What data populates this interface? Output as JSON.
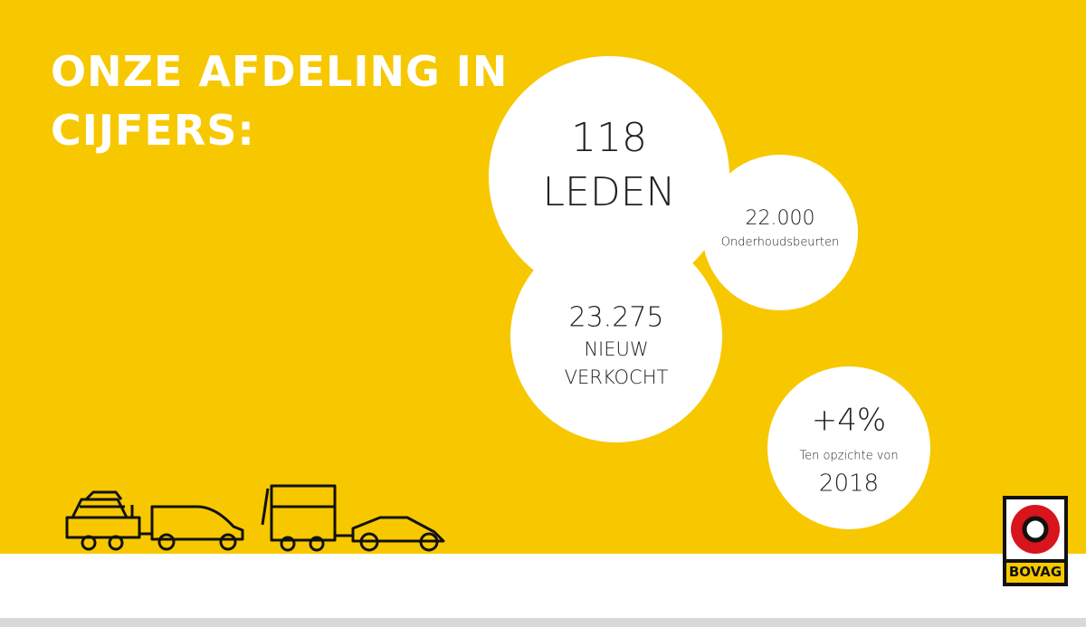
{
  "header": {
    "title": [
      "ONZE AFDELING IN",
      "CIJFERS:"
    ]
  },
  "circles": [
    {
      "lines": [
        "118",
        "LEDEN"
      ]
    },
    {
      "lines": [
        "22.000",
        "Onderhoudsbeurten"
      ]
    },
    {
      "lines": [
        "23.275",
        "NIEUW",
        "VERKOCHT"
      ]
    },
    {
      "lines": [
        "+4%",
        "Ten opzichte von",
        "2018"
      ]
    }
  ],
  "logo": {
    "text": "BOVAG"
  }
}
